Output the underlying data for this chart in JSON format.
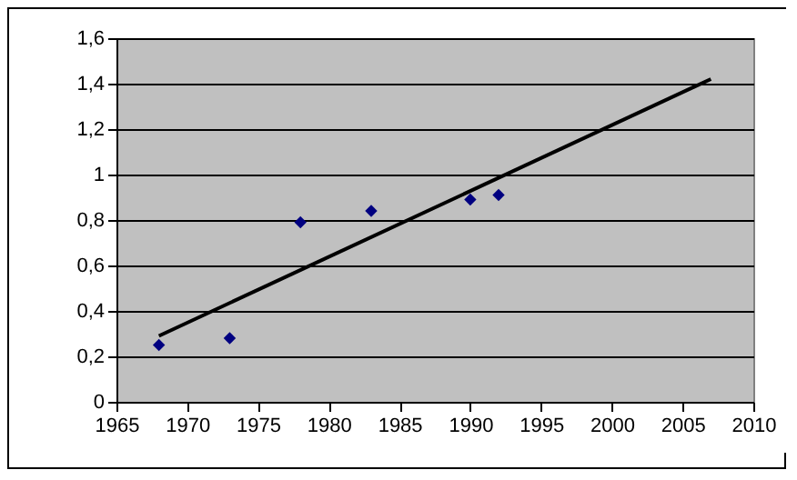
{
  "chart_data": {
    "type": "scatter",
    "series": [
      {
        "color": "#000080",
        "marker": "diamond",
        "x": [
          1968,
          1973,
          1978,
          1983,
          1990,
          1992
        ],
        "values": [
          0.25,
          0.28,
          0.79,
          0.84,
          0.89,
          0.91
        ]
      },
      {
        "type": "line",
        "color": "#000000",
        "x": [
          1968,
          2007
        ],
        "values": [
          0.29,
          1.42
        ]
      }
    ],
    "xlim": [
      1965,
      2010
    ],
    "xticks": [
      1965,
      1970,
      1975,
      1980,
      1985,
      1990,
      1995,
      2000,
      2005,
      2010
    ],
    "ylim": [
      0,
      1.6
    ],
    "yticks": [
      0,
      {
        "value": 0.2,
        "label": "0,2"
      },
      {
        "value": 0.4,
        "label": "0,4"
      },
      {
        "value": 0.6,
        "label": "0,6"
      },
      {
        "value": 0.8,
        "label": "0,8"
      },
      1,
      {
        "value": 1.2,
        "label": "1,2"
      },
      {
        "value": 1.4,
        "label": "1,4"
      },
      {
        "value": 1.6,
        "label": "1,6"
      }
    ],
    "grid": "y"
  }
}
